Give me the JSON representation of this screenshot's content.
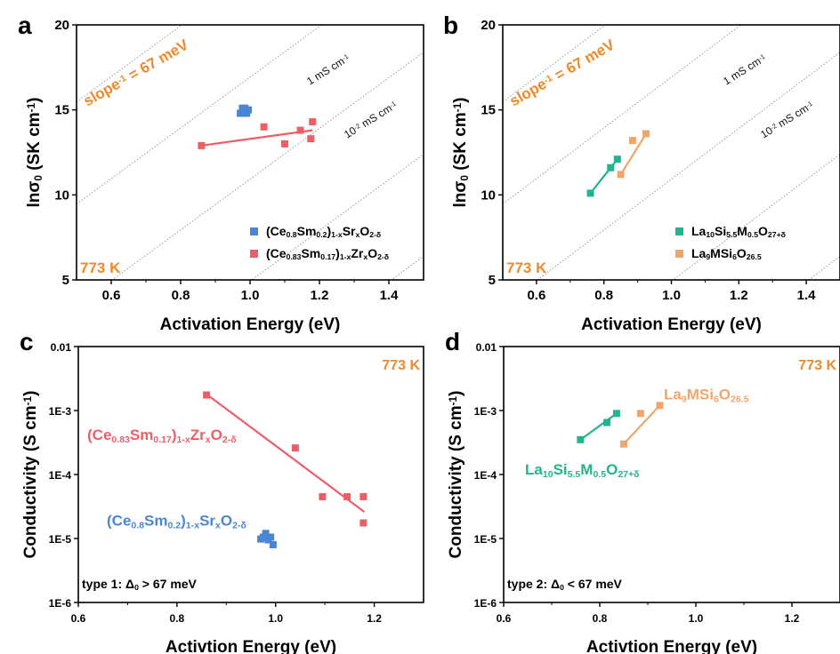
{
  "colors": {
    "blue": "#4a86d4",
    "red": "#ec5f67",
    "green": "#23b38f",
    "orange": "#f0a66a",
    "accent": "#ef8a2a",
    "axis": "#000000",
    "guide": "#9a9a9a"
  },
  "chart_data": [
    {
      "panel": "a",
      "type": "scatter",
      "xlabel": "Activation Energy (eV)",
      "ylabel_main": "lnσ",
      "ylabel_sub": "0",
      "ylabel_unit": " (SK cm",
      "ylabel_exp": "-1",
      "ylabel_end": ")",
      "xlim": [
        0.5,
        1.5
      ],
      "ylim": [
        5,
        20
      ],
      "xticks": [
        0.6,
        0.8,
        1.0,
        1.2,
        1.4
      ],
      "xticklabels": [
        "0.6",
        "0.8",
        "1.0",
        "1.2",
        "1.4"
      ],
      "yticks": [
        5,
        10,
        15,
        20
      ],
      "yticklabels": [
        "5",
        "10",
        "15",
        "20"
      ],
      "annotations": {
        "slope_main": "slope",
        "slope_exp": "-1",
        "slope_end": " = 67 meV",
        "temp": "773 K",
        "guide1_main": "1 mS cm",
        "guide1_exp": "-1",
        "guide2_pre": "10",
        "guide2_pre_exp": "-2",
        "guide2_main": " mS cm",
        "guide2_exp": "-1"
      },
      "legend": [
        {
          "color": "blue",
          "parts": [
            [
              "(Ce",
              ""
            ],
            [
              "0.8",
              "sub"
            ],
            [
              "Sm",
              ""
            ],
            [
              "0.2",
              "sub"
            ],
            [
              ")",
              ""
            ],
            [
              "1-x",
              "sub"
            ],
            [
              "Sr",
              ""
            ],
            [
              "x",
              "sub"
            ],
            [
              "O",
              ""
            ],
            [
              "2-δ",
              "sub"
            ]
          ]
        },
        {
          "color": "red",
          "parts": [
            [
              "(Ce",
              ""
            ],
            [
              "0.83",
              "sub"
            ],
            [
              "Sm",
              ""
            ],
            [
              "0.17",
              "sub"
            ],
            [
              ")",
              ""
            ],
            [
              "1-x",
              "sub"
            ],
            [
              "Zr",
              ""
            ],
            [
              "x",
              "sub"
            ],
            [
              "O",
              ""
            ],
            [
              "2-δ",
              "sub"
            ]
          ]
        }
      ],
      "series": [
        {
          "color": "blue",
          "points": [
            [
              0.972,
              14.8
            ],
            [
              0.978,
              15.1
            ],
            [
              0.982,
              14.9
            ],
            [
              0.985,
              15.1
            ],
            [
              0.99,
              14.8
            ],
            [
              0.995,
              15.0
            ],
            [
              0.983,
              15.0
            ]
          ]
        },
        {
          "color": "red",
          "points": [
            [
              0.86,
              12.9
            ],
            [
              1.04,
              14.0
            ],
            [
              1.1,
              13.0
            ],
            [
              1.145,
              13.8
            ],
            [
              1.18,
              14.3
            ],
            [
              1.175,
              13.3
            ]
          ],
          "fit": [
            [
              0.86,
              12.9
            ],
            [
              1.18,
              13.8
            ]
          ]
        }
      ]
    },
    {
      "panel": "b",
      "type": "scatter",
      "xlabel": "Activation Energy (eV)",
      "ylabel_main": "lnσ",
      "ylabel_sub": "0",
      "ylabel_unit": " (SK cm",
      "ylabel_exp": "-1",
      "ylabel_end": ")",
      "xlim": [
        0.5,
        1.5
      ],
      "ylim": [
        5,
        20
      ],
      "xticks": [
        0.6,
        0.8,
        1.0,
        1.2,
        1.4
      ],
      "xticklabels": [
        "0.6",
        "0.8",
        "1.0",
        "1.2",
        "1.4"
      ],
      "yticks": [
        5,
        10,
        15,
        20
      ],
      "yticklabels": [
        "5",
        "10",
        "15",
        "20"
      ],
      "annotations": {
        "slope_main": "slope",
        "slope_exp": "-1",
        "slope_end": " = 67 meV",
        "temp": "773 K",
        "guide1_main": "1 mS cm",
        "guide1_exp": "-1",
        "guide2_pre": "10",
        "guide2_pre_exp": "-2",
        "guide2_main": " mS cm",
        "guide2_exp": "-1"
      },
      "legend": [
        {
          "color": "green",
          "parts": [
            [
              "La",
              ""
            ],
            [
              "10",
              "sub"
            ],
            [
              "Si",
              ""
            ],
            [
              "5.5",
              "sub"
            ],
            [
              "M",
              ""
            ],
            [
              "0.5",
              "sub"
            ],
            [
              "O",
              ""
            ],
            [
              "27+δ",
              "sub"
            ]
          ]
        },
        {
          "color": "orange",
          "parts": [
            [
              "La",
              ""
            ],
            [
              "9",
              "sub"
            ],
            [
              "MSi",
              ""
            ],
            [
              "6",
              "sub"
            ],
            [
              "O",
              ""
            ],
            [
              "26.5",
              "sub"
            ]
          ]
        }
      ],
      "series": [
        {
          "color": "green",
          "points": [
            [
              0.76,
              10.1
            ],
            [
              0.82,
              11.6
            ],
            [
              0.84,
              12.1
            ]
          ],
          "fit": [
            [
              0.76,
              10.1
            ],
            [
              0.84,
              12.1
            ]
          ]
        },
        {
          "color": "orange",
          "points": [
            [
              0.85,
              11.2
            ],
            [
              0.885,
              13.2
            ],
            [
              0.925,
              13.6
            ]
          ],
          "fit": [
            [
              0.85,
              11.2
            ],
            [
              0.925,
              13.6
            ]
          ]
        }
      ]
    },
    {
      "panel": "c",
      "type": "scatter",
      "xlabel": "Activtion Energy (eV)",
      "ylabel_main": "Conductivity (S cm",
      "ylabel_exp": "-1",
      "ylabel_end": ")",
      "yscale": "log",
      "xlim": [
        0.6,
        1.3
      ],
      "ylim": [
        1e-06,
        0.01
      ],
      "xticks": [
        0.6,
        0.8,
        1.0,
        1.2
      ],
      "xticklabels": [
        "0.6",
        "0.8",
        "1.0",
        "1.2"
      ],
      "yticks": [
        1e-06,
        1e-05,
        0.0001,
        0.001,
        0.01
      ],
      "yticklabels": [
        "1E-6",
        "1E-5",
        "1E-4",
        "1E-3",
        "0.01"
      ],
      "annotations": {
        "temp": "773 K",
        "type_main": "type 1: Δ",
        "type_sub": "0",
        "type_end": " > 67 meV"
      },
      "labels": [
        {
          "color": "red",
          "parts": [
            [
              "(Ce",
              ""
            ],
            [
              "0.83",
              "sub"
            ],
            [
              "Sm",
              ""
            ],
            [
              "0.17",
              "sub"
            ],
            [
              ")",
              ""
            ],
            [
              "1-x",
              "sub"
            ],
            [
              "Zr",
              ""
            ],
            [
              "x",
              "sub"
            ],
            [
              "O",
              ""
            ],
            [
              "2-δ",
              "sub"
            ]
          ]
        },
        {
          "color": "blue",
          "parts": [
            [
              "(Ce",
              ""
            ],
            [
              "0.8",
              "sub"
            ],
            [
              "Sm",
              ""
            ],
            [
              "0.2",
              "sub"
            ],
            [
              ")",
              ""
            ],
            [
              "1-x",
              "sub"
            ],
            [
              "Sr",
              ""
            ],
            [
              "x",
              "sub"
            ],
            [
              "O",
              ""
            ],
            [
              "2-δ",
              "sub"
            ]
          ]
        }
      ],
      "series": [
        {
          "color": "red",
          "points": [
            [
              0.86,
              0.00175
            ],
            [
              1.04,
              0.00026
            ],
            [
              1.095,
              4.5e-05
            ],
            [
              1.145,
              4.5e-05
            ],
            [
              1.178,
              4.5e-05
            ],
            [
              1.178,
              1.75e-05
            ]
          ],
          "fit": [
            [
              0.86,
              0.0018
            ],
            [
              1.18,
              2.6e-05
            ]
          ]
        },
        {
          "color": "blue",
          "points": [
            [
              0.975,
              1.05e-05
            ],
            [
              0.98,
              1.2e-05
            ],
            [
              0.985,
              9.5e-06
            ],
            [
              0.99,
              1.05e-05
            ],
            [
              0.995,
              8e-06
            ],
            [
              0.97,
              9.8e-06
            ]
          ]
        }
      ]
    },
    {
      "panel": "d",
      "type": "scatter",
      "xlabel": "Activtion Energy (eV)",
      "ylabel_main": "Conductivity (S cm",
      "ylabel_exp": "-1",
      "ylabel_end": ")",
      "yscale": "log",
      "xlim": [
        0.6,
        1.3
      ],
      "ylim": [
        1e-06,
        0.01
      ],
      "xticks": [
        0.6,
        0.8,
        1.0,
        1.2
      ],
      "xticklabels": [
        "0.6",
        "0.8",
        "1.0",
        "1.2"
      ],
      "yticks": [
        1e-06,
        1e-05,
        0.0001,
        0.001,
        0.01
      ],
      "yticklabels": [
        "1E-6",
        "1E-5",
        "1E-4",
        "1E-3",
        "0.01"
      ],
      "annotations": {
        "temp": "773 K",
        "type_main": "type 2: Δ",
        "type_sub": "0",
        "type_end": " < 67 meV"
      },
      "labels": [
        {
          "color": "orange",
          "parts": [
            [
              "La",
              ""
            ],
            [
              "9",
              "sub"
            ],
            [
              "MSi",
              ""
            ],
            [
              "6",
              "sub"
            ],
            [
              "O",
              ""
            ],
            [
              "26.5",
              "sub"
            ]
          ]
        },
        {
          "color": "green",
          "parts": [
            [
              "La",
              ""
            ],
            [
              "10",
              "sub"
            ],
            [
              "Si",
              ""
            ],
            [
              "5.5",
              "sub"
            ],
            [
              "M",
              ""
            ],
            [
              "0.5",
              "sub"
            ],
            [
              "O",
              ""
            ],
            [
              "27+δ",
              "sub"
            ]
          ]
        }
      ],
      "series": [
        {
          "color": "green",
          "points": [
            [
              0.76,
              0.00035
            ],
            [
              0.815,
              0.00065
            ],
            [
              0.835,
              0.0009
            ]
          ],
          "fit": [
            [
              0.76,
              0.00035
            ],
            [
              0.835,
              0.0009
            ]
          ]
        },
        {
          "color": "orange",
          "points": [
            [
              0.85,
              0.0003
            ],
            [
              0.885,
              0.0009
            ],
            [
              0.925,
              0.0012
            ]
          ],
          "fit": [
            [
              0.85,
              0.0003
            ],
            [
              0.925,
              0.0012
            ]
          ]
        }
      ]
    }
  ],
  "panel_letters": [
    "a",
    "b",
    "c",
    "d"
  ]
}
